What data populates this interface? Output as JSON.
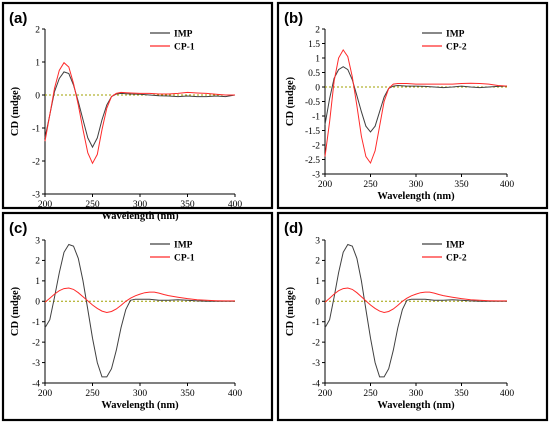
{
  "colors": {
    "imp": "#404040",
    "cp": "#ff2a2a",
    "zero": "#a0a000",
    "frame": "#000000"
  },
  "chart_data": [
    {
      "panel": "(a)",
      "type": "line",
      "xlabel": "Wavelength (nm)",
      "ylabel": "CD (mdge)",
      "xlim": [
        200,
        400
      ],
      "ylim": [
        -3,
        2
      ],
      "xticks": [
        200,
        250,
        300,
        350,
        400
      ],
      "yticks": [
        -3,
        -2,
        -1,
        0,
        1,
        2
      ],
      "legend": "top-right",
      "series": [
        {
          "name": "IMP",
          "color": "#404040",
          "x": [
            200,
            205,
            210,
            215,
            220,
            225,
            230,
            235,
            240,
            245,
            250,
            255,
            260,
            265,
            270,
            275,
            280,
            290,
            300,
            310,
            320,
            330,
            340,
            350,
            360,
            370,
            380,
            390,
            400
          ],
          "y": [
            -1.3,
            -0.6,
            0.1,
            0.5,
            0.7,
            0.65,
            0.3,
            -0.2,
            -0.75,
            -1.3,
            -1.58,
            -1.3,
            -0.75,
            -0.3,
            -0.05,
            0.03,
            0.05,
            0.03,
            0.02,
            0.0,
            -0.02,
            -0.03,
            -0.05,
            -0.03,
            -0.05,
            -0.05,
            -0.03,
            -0.05,
            0.0
          ]
        },
        {
          "name": "CP-1",
          "color": "#ff2a2a",
          "x": [
            200,
            205,
            210,
            215,
            220,
            225,
            230,
            235,
            240,
            245,
            250,
            255,
            260,
            265,
            270,
            275,
            280,
            290,
            300,
            310,
            320,
            330,
            340,
            350,
            360,
            370,
            380,
            390,
            400
          ],
          "y": [
            -1.4,
            -0.6,
            0.2,
            0.75,
            0.98,
            0.85,
            0.35,
            -0.3,
            -1.05,
            -1.75,
            -2.07,
            -1.8,
            -1.05,
            -0.4,
            -0.05,
            0.05,
            0.08,
            0.06,
            0.05,
            0.05,
            0.03,
            0.03,
            0.05,
            0.08,
            0.06,
            0.05,
            0.02,
            0.0,
            0.0
          ]
        }
      ]
    },
    {
      "panel": "(b)",
      "type": "line",
      "xlabel": "Wavelength (nm)",
      "ylabel": "CD (mdge)",
      "xlim": [
        200,
        400
      ],
      "ylim": [
        -3,
        2
      ],
      "xticks": [
        200,
        250,
        300,
        350,
        400
      ],
      "yticks": [
        -3,
        -2.5,
        -2,
        -1.5,
        -1,
        -0.5,
        0,
        0.5,
        1,
        1.5,
        2
      ],
      "legend": "top-right",
      "series": [
        {
          "name": "IMP",
          "color": "#404040",
          "x": [
            200,
            205,
            210,
            215,
            220,
            225,
            230,
            235,
            240,
            245,
            250,
            255,
            260,
            265,
            270,
            275,
            280,
            290,
            300,
            310,
            320,
            330,
            340,
            350,
            360,
            370,
            380,
            390,
            400
          ],
          "y": [
            -1.3,
            -0.4,
            0.3,
            0.6,
            0.7,
            0.6,
            0.25,
            -0.3,
            -0.85,
            -1.35,
            -1.55,
            -1.35,
            -0.85,
            -0.35,
            -0.05,
            0.03,
            0.05,
            0.03,
            0.03,
            0.02,
            0.0,
            -0.02,
            0.0,
            0.03,
            0.0,
            -0.02,
            0.0,
            0.02,
            0.03
          ]
        },
        {
          "name": "CP-2",
          "color": "#ff2a2a",
          "x": [
            200,
            205,
            210,
            215,
            220,
            225,
            230,
            235,
            240,
            245,
            250,
            255,
            260,
            265,
            270,
            275,
            280,
            290,
            300,
            310,
            320,
            330,
            340,
            350,
            360,
            370,
            380,
            390,
            400
          ],
          "y": [
            -2.4,
            -1.2,
            0.2,
            1.0,
            1.28,
            1.05,
            0.35,
            -0.65,
            -1.7,
            -2.4,
            -2.62,
            -2.2,
            -1.35,
            -0.5,
            -0.05,
            0.1,
            0.12,
            0.12,
            0.1,
            0.1,
            0.1,
            0.1,
            0.1,
            0.12,
            0.13,
            0.12,
            0.1,
            0.05,
            0.03
          ]
        }
      ]
    },
    {
      "panel": "(c)",
      "type": "line",
      "xlabel": "Wavelength (nm)",
      "ylabel": "CD (mdge)",
      "xlim": [
        200,
        400
      ],
      "ylim": [
        -4,
        3
      ],
      "xticks": [
        200,
        250,
        300,
        350,
        400
      ],
      "yticks": [
        -4,
        -3,
        -2,
        -1,
        0,
        1,
        2,
        3
      ],
      "legend": "top-right",
      "series": [
        {
          "name": "IMP",
          "color": "#404040",
          "x": [
            200,
            205,
            210,
            215,
            220,
            225,
            230,
            235,
            240,
            245,
            250,
            255,
            260,
            265,
            270,
            275,
            280,
            285,
            290,
            295,
            300,
            310,
            320,
            330,
            340,
            350,
            360,
            370,
            380,
            390,
            400
          ],
          "y": [
            -1.3,
            -0.9,
            0.2,
            1.4,
            2.4,
            2.78,
            2.7,
            2.1,
            1.0,
            -0.4,
            -1.8,
            -3.0,
            -3.7,
            -3.7,
            -3.3,
            -2.4,
            -1.3,
            -0.4,
            0.05,
            0.1,
            0.1,
            0.1,
            0.05,
            0.05,
            0.08,
            0.05,
            0.02,
            0.0,
            0.0,
            0.0,
            0.0
          ]
        },
        {
          "name": "CP-1",
          "color": "#ff2a2a",
          "x": [
            200,
            205,
            210,
            215,
            220,
            225,
            230,
            235,
            240,
            245,
            250,
            255,
            260,
            265,
            270,
            275,
            280,
            285,
            290,
            295,
            300,
            305,
            310,
            315,
            320,
            325,
            330,
            340,
            350,
            360,
            370,
            380,
            390,
            400
          ],
          "y": [
            -0.05,
            0.15,
            0.35,
            0.52,
            0.62,
            0.65,
            0.58,
            0.42,
            0.22,
            0.02,
            -0.18,
            -0.35,
            -0.48,
            -0.55,
            -0.5,
            -0.38,
            -0.2,
            0.0,
            0.15,
            0.27,
            0.35,
            0.42,
            0.45,
            0.45,
            0.4,
            0.33,
            0.28,
            0.2,
            0.13,
            0.08,
            0.05,
            0.03,
            0.02,
            0.02
          ]
        }
      ]
    },
    {
      "panel": "(d)",
      "type": "line",
      "xlabel": "Wavelength (nm)",
      "ylabel": "CD (mdge)",
      "xlim": [
        200,
        400
      ],
      "ylim": [
        -4,
        3
      ],
      "xticks": [
        200,
        250,
        300,
        350,
        400
      ],
      "yticks": [
        -4,
        -3,
        -2,
        -1,
        0,
        1,
        2,
        3
      ],
      "legend": "top-right",
      "series": [
        {
          "name": "IMP",
          "color": "#404040",
          "x": [
            200,
            205,
            210,
            215,
            220,
            225,
            230,
            235,
            240,
            245,
            250,
            255,
            260,
            265,
            270,
            275,
            280,
            285,
            290,
            295,
            300,
            310,
            320,
            330,
            340,
            350,
            360,
            370,
            380,
            390,
            400
          ],
          "y": [
            -1.3,
            -0.9,
            0.2,
            1.4,
            2.4,
            2.78,
            2.7,
            2.1,
            1.0,
            -0.4,
            -1.8,
            -3.0,
            -3.7,
            -3.7,
            -3.3,
            -2.4,
            -1.3,
            -0.4,
            0.05,
            0.1,
            0.1,
            0.1,
            0.05,
            0.05,
            0.08,
            0.05,
            0.02,
            0.0,
            0.0,
            0.0,
            0.0
          ]
        },
        {
          "name": "CP-2",
          "color": "#ff2a2a",
          "x": [
            200,
            205,
            210,
            215,
            220,
            225,
            230,
            235,
            240,
            245,
            250,
            255,
            260,
            265,
            270,
            275,
            280,
            285,
            290,
            295,
            300,
            305,
            310,
            315,
            320,
            325,
            330,
            340,
            350,
            360,
            370,
            380,
            390,
            400
          ],
          "y": [
            -0.05,
            0.15,
            0.35,
            0.52,
            0.62,
            0.65,
            0.58,
            0.42,
            0.22,
            0.02,
            -0.18,
            -0.35,
            -0.48,
            -0.55,
            -0.5,
            -0.38,
            -0.2,
            0.0,
            0.15,
            0.27,
            0.35,
            0.42,
            0.45,
            0.45,
            0.4,
            0.33,
            0.28,
            0.2,
            0.13,
            0.08,
            0.05,
            0.03,
            0.02,
            0.02
          ]
        }
      ]
    }
  ]
}
